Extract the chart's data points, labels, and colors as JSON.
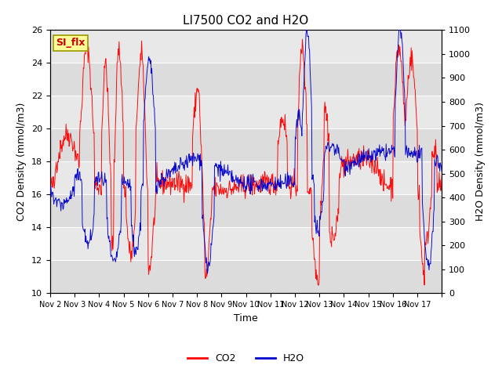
{
  "title": "LI7500 CO2 and H2O",
  "xlabel": "Time",
  "ylabel_left": "CO2 Density (mmol/m3)",
  "ylabel_right": "H2O Density (mmol/m3)",
  "ylim_left": [
    10,
    26
  ],
  "ylim_right": [
    0,
    1100
  ],
  "yticks_left": [
    10,
    12,
    14,
    16,
    18,
    20,
    22,
    24,
    26
  ],
  "yticks_right": [
    0,
    100,
    200,
    300,
    400,
    500,
    600,
    700,
    800,
    900,
    1000,
    1100
  ],
  "xtick_labels": [
    "Nov 2",
    "Nov 3",
    "Nov 4",
    "Nov 5",
    "Nov 6",
    "Nov 7",
    "Nov 8",
    "Nov 9",
    "Nov 10",
    "Nov 11",
    "Nov 12",
    "Nov 13",
    "Nov 14",
    "Nov 15",
    "Nov 16",
    "Nov 17"
  ],
  "co2_color": "#FF0000",
  "h2o_color": "#0000CC",
  "legend_co2": "CO2",
  "legend_h2o": "H2O",
  "annotation_text": "SI_flx",
  "annotation_facecolor": "#FFFF99",
  "annotation_edgecolor": "#999900",
  "annotation_textcolor": "#CC0000",
  "plot_bg_color": "#E8E8E8",
  "grid_color": "#FFFFFF",
  "title_fontsize": 11,
  "label_fontsize": 9,
  "tick_fontsize": 8,
  "legend_fontsize": 9,
  "seed": 42,
  "n_days": 16,
  "n_points_per_day": 48,
  "figsize": [
    6.4,
    4.8
  ],
  "dpi": 100
}
